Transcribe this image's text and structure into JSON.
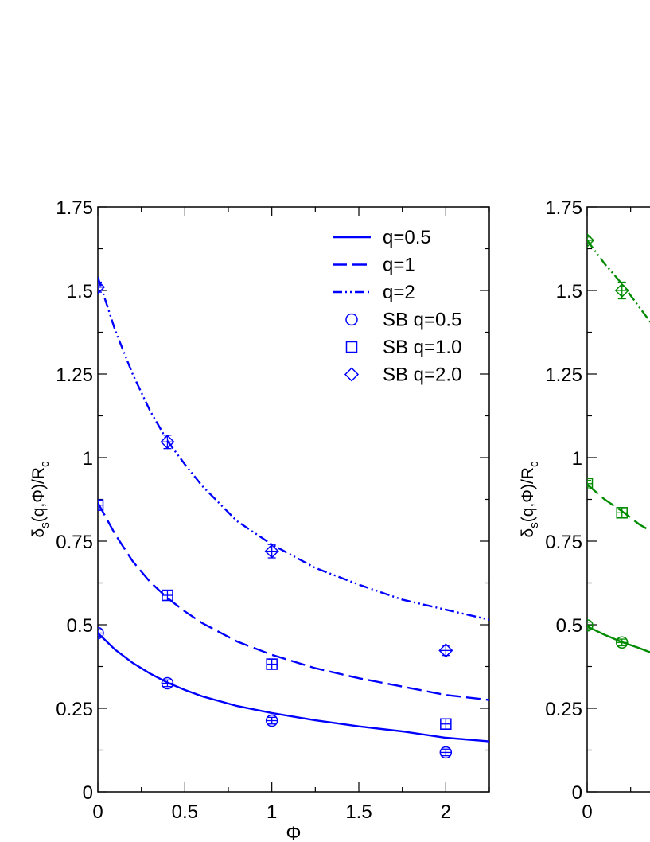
{
  "chart_data": [
    {
      "type": "line",
      "panel": "left",
      "color": "#0000ff",
      "xlabel": "Φ",
      "ylabel_main": "δ",
      "ylabel_sub1": "s",
      "ylabel_mid": "(q,Φ)/R",
      "ylabel_sub2": "c",
      "xlim": [
        0,
        2.25
      ],
      "ylim": [
        0,
        1.75
      ],
      "xticks": [
        "0",
        "0.5",
        "1",
        "1.5",
        "2"
      ],
      "yticks": [
        "0",
        "0.25",
        "0.5",
        "0.75",
        "1",
        "1.25",
        "1.5",
        "1.75"
      ],
      "legend_position": "top-right",
      "series": [
        {
          "name": "q=0.5",
          "style": "solid",
          "x": [
            0,
            0.1,
            0.2,
            0.3,
            0.4,
            0.5,
            0.6,
            0.8,
            1.0,
            1.25,
            1.5,
            1.75,
            2.0,
            2.25
          ],
          "y": [
            0.475,
            0.425,
            0.386,
            0.354,
            0.327,
            0.305,
            0.286,
            0.257,
            0.236,
            0.214,
            0.196,
            0.181,
            0.162,
            0.151
          ]
        },
        {
          "name": "q=1",
          "style": "dashed",
          "x": [
            0,
            0.1,
            0.2,
            0.3,
            0.4,
            0.5,
            0.6,
            0.8,
            1.0,
            1.25,
            1.5,
            1.75,
            2.0,
            2.25
          ],
          "y": [
            0.865,
            0.77,
            0.69,
            0.628,
            0.58,
            0.54,
            0.505,
            0.45,
            0.41,
            0.37,
            0.34,
            0.315,
            0.29,
            0.275
          ]
        },
        {
          "name": "q=2",
          "style": "dashdotdot",
          "x": [
            0,
            0.1,
            0.2,
            0.3,
            0.4,
            0.5,
            0.6,
            0.8,
            1.0,
            1.25,
            1.5,
            1.75,
            2.0,
            2.25
          ],
          "y": [
            1.54,
            1.38,
            1.25,
            1.14,
            1.05,
            0.98,
            0.915,
            0.81,
            0.74,
            0.67,
            0.62,
            0.575,
            0.545,
            0.515
          ]
        },
        {
          "name": "SB q=0.5",
          "marker": "circle",
          "x": [
            0,
            0.4,
            1.0,
            2.0
          ],
          "y": [
            0.475,
            0.325,
            0.213,
            0.118
          ],
          "err": [
            0.01,
            0.01,
            0.01,
            0.01
          ]
        },
        {
          "name": "SB q=1.0",
          "marker": "square",
          "x": [
            0,
            0.4,
            1.0,
            2.0
          ],
          "y": [
            0.858,
            0.588,
            0.382,
            0.203
          ],
          "err": [
            0.015,
            0.015,
            0.015,
            0.015
          ]
        },
        {
          "name": "SB q=2.0",
          "marker": "diamond",
          "x": [
            0,
            0.4,
            1.0,
            2.0
          ],
          "y": [
            1.51,
            1.047,
            0.72,
            0.423
          ],
          "err": [
            0.015,
            0.02,
            0.02,
            0.015
          ]
        }
      ]
    },
    {
      "type": "line",
      "panel": "right",
      "color": "#008b00",
      "xlabel": "",
      "ylabel_main": "δ",
      "ylabel_sub1": "s",
      "ylabel_mid": "(q,Φ)/R",
      "ylabel_sub2": "c",
      "xlim": [
        0,
        2.25
      ],
      "ylim": [
        0,
        1.75
      ],
      "xticks": [
        "0"
      ],
      "yticks": [
        "0",
        "0.25",
        "0.5",
        "0.75",
        "1",
        "1.25",
        "1.5",
        "1.75"
      ],
      "series": [
        {
          "style": "solid",
          "x": [
            0,
            0.1,
            0.2,
            0.3,
            0.4
          ],
          "y": [
            0.495,
            0.47,
            0.448,
            0.43,
            0.41
          ]
        },
        {
          "style": "dashed",
          "x": [
            0,
            0.1,
            0.2,
            0.3,
            0.4
          ],
          "y": [
            0.92,
            0.875,
            0.84,
            0.8,
            0.77
          ]
        },
        {
          "style": "dashdotdot",
          "x": [
            0,
            0.1,
            0.2,
            0.3,
            0.4
          ],
          "y": [
            1.65,
            1.58,
            1.52,
            1.45,
            1.38
          ]
        },
        {
          "marker": "circle",
          "x": [
            0,
            0.2
          ],
          "y": [
            0.498,
            0.447
          ],
          "err": [
            0.01,
            0.01
          ]
        },
        {
          "marker": "square",
          "x": [
            0,
            0.2
          ],
          "y": [
            0.922,
            0.835
          ],
          "err": [
            0.01,
            0.015
          ]
        },
        {
          "marker": "diamond",
          "x": [
            0,
            0.2
          ],
          "y": [
            1.65,
            1.5
          ],
          "err": [
            0.01,
            0.025
          ]
        }
      ]
    }
  ]
}
